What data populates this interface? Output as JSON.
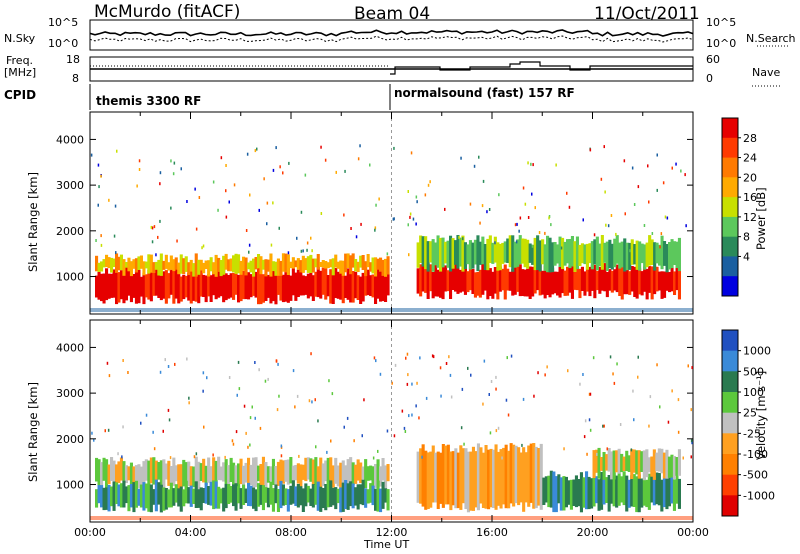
{
  "header": {
    "station": "McMurdo (fitACF)",
    "beam": "Beam 04",
    "date": "11/Oct/2011"
  },
  "top_panels": {
    "nsky_label": "N.Sky",
    "nsky_ticks": [
      "10^5",
      "10^0"
    ],
    "nsearch_label": "N.Search",
    "nsearch_ticks": [
      "10^5",
      "10^0"
    ],
    "freq_label": "Freq.",
    "freq_unit": "[MHz]",
    "freq_ticks": [
      "18",
      "8"
    ],
    "nave_label": "Nave",
    "nave_ticks": [
      "60",
      "0"
    ],
    "cpid_label": "CPID",
    "cpid_segments": [
      {
        "name": "themis 3300 RF",
        "start_hour": 0
      },
      {
        "name": "normalsound (fast) 157 RF",
        "start_hour": 12
      }
    ]
  },
  "chart_data": [
    {
      "type": "heatmap",
      "title": "",
      "xlabel": "Time UT",
      "ylabel": "Slant Range [km]",
      "x_ticks": [
        "00:00",
        "04:00",
        "08:00",
        "12:00",
        "16:00",
        "20:00",
        "00:00"
      ],
      "xlim_hours": [
        0,
        24
      ],
      "y_ticks": [
        1000,
        2000,
        3000,
        4000
      ],
      "ylim": [
        180,
        4600
      ],
      "colorbar": {
        "label": "Power [dB]",
        "ticks": [
          "28",
          "24",
          "20",
          "16",
          "12",
          "8",
          "4"
        ],
        "colors": [
          "#e60000",
          "#ff3a00",
          "#ff7a00",
          "#ffaa00",
          "#c8e000",
          "#5cc85c",
          "#2a8a5a",
          "#1a5fa0",
          "#0000e0"
        ]
      },
      "backscatter": [
        {
          "start": 0.2,
          "end": 11.9,
          "range": [
            500,
            1100
          ],
          "value": "28"
        },
        {
          "start": 0.2,
          "end": 11.9,
          "range": [
            1100,
            1400
          ],
          "value": "16"
        },
        {
          "start": 13.0,
          "end": 23.5,
          "range": [
            600,
            1200
          ],
          "value": "28"
        },
        {
          "start": 13.0,
          "end": 23.5,
          "range": [
            1200,
            1800
          ],
          "value": "8"
        }
      ]
    },
    {
      "type": "heatmap",
      "title": "",
      "xlabel": "Time UT",
      "ylabel": "Slant Range [km]",
      "x_ticks": [
        "00:00",
        "04:00",
        "08:00",
        "12:00",
        "16:00",
        "20:00",
        "00:00"
      ],
      "xlim_hours": [
        0,
        24
      ],
      "y_ticks": [
        1000,
        2000,
        3000,
        4000
      ],
      "ylim": [
        180,
        4600
      ],
      "colorbar": {
        "label": "Velocity [m s⁻¹]",
        "ticks": [
          "1000",
          "500",
          "100",
          "25",
          "-25",
          "-100",
          "-500",
          "-1000"
        ],
        "colors": [
          "#2050c0",
          "#3a8ad8",
          "#2a7a50",
          "#5cc83c",
          "#c0c0c0",
          "#ffa020",
          "#ff8000",
          "#ff4000",
          "#e00000"
        ]
      },
      "backscatter": [
        {
          "start": 0.2,
          "end": 11.9,
          "range": [
            1000,
            1500
          ],
          "value": "-25"
        },
        {
          "start": 0.2,
          "end": 11.9,
          "range": [
            500,
            1000
          ],
          "value": "100"
        },
        {
          "start": 13.0,
          "end": 18.0,
          "range": [
            500,
            1800
          ],
          "value": "-100"
        },
        {
          "start": 18.0,
          "end": 23.5,
          "range": [
            500,
            1200
          ],
          "value": "100"
        },
        {
          "start": 20.0,
          "end": 23.5,
          "range": [
            1200,
            1700
          ],
          "value": "-25"
        }
      ]
    }
  ]
}
